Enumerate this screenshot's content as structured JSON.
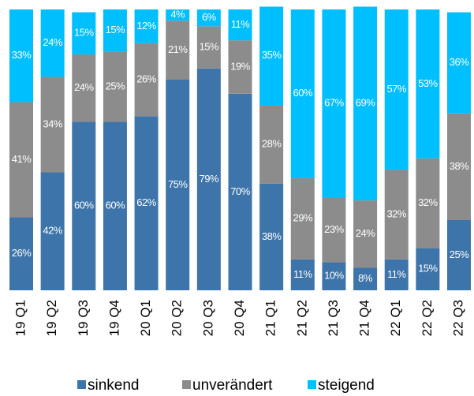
{
  "chart_data": {
    "type": "stacked_bar",
    "categories": [
      "19 Q1",
      "19 Q2",
      "19 Q3",
      "19 Q4",
      "20 Q1",
      "20 Q2",
      "20 Q3",
      "20 Q4",
      "21 Q1",
      "21 Q2",
      "21 Q3",
      "21 Q4",
      "22 Q1",
      "22 Q2",
      "22 Q3"
    ],
    "series": [
      {
        "name": "sinkend",
        "color": "#3d74a9",
        "values": [
          26,
          42,
          60,
          60,
          62,
          75,
          79,
          70,
          38,
          11,
          10,
          8,
          11,
          15,
          25
        ],
        "value_labels": [
          "26%",
          "42%",
          "60%",
          "60%",
          "62%",
          "75%",
          "79%",
          "70%",
          "38%",
          "11%",
          "10%",
          "8%",
          "11%",
          "15%",
          "25%"
        ]
      },
      {
        "name": "unverändert",
        "color": "#8c8c8c",
        "values": [
          41,
          34,
          24,
          25,
          26,
          21,
          15,
          19,
          28,
          29,
          23,
          24,
          32,
          32,
          38
        ],
        "value_labels": [
          "41%",
          "34%",
          "24%",
          "25%",
          "26%",
          "21%",
          "15%",
          "19%",
          "28%",
          "29%",
          "23%",
          "24%",
          "32%",
          "32%",
          "38%"
        ]
      },
      {
        "name": "steigend",
        "color": "#00bfff",
        "values": [
          33,
          24,
          15,
          15,
          12,
          4,
          6,
          11,
          35,
          60,
          67,
          69,
          57,
          53,
          36
        ],
        "value_labels": [
          "33%",
          "24%",
          "15%",
          "15%",
          "12%",
          "4%",
          "6%",
          "11%",
          "35%",
          "60%",
          "67%",
          "69%",
          "57%",
          "53%",
          "36%"
        ]
      }
    ],
    "ylim": [
      0,
      100
    ],
    "legend": "bottom"
  }
}
